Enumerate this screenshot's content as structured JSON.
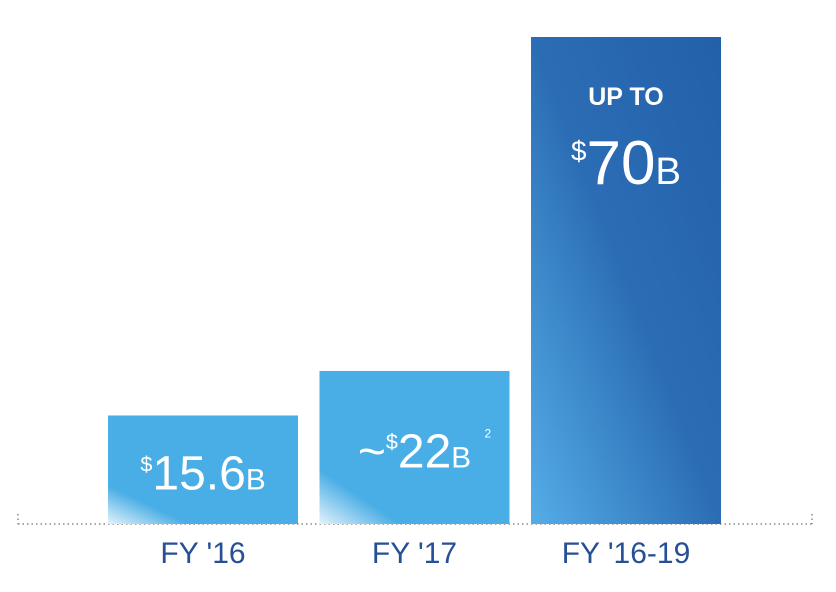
{
  "chart_data": {
    "type": "bar",
    "categories": [
      "FY '16",
      "FY '17",
      "FY '16-19"
    ],
    "values": [
      15.6,
      22,
      70
    ],
    "value_labels": [
      "$15.6B",
      "~$22B",
      "$70B"
    ],
    "colors": [
      "#4aaee6",
      "#4aaee6",
      "#2360aa"
    ],
    "annotations": [
      "2",
      "UP TO"
    ]
  }
}
